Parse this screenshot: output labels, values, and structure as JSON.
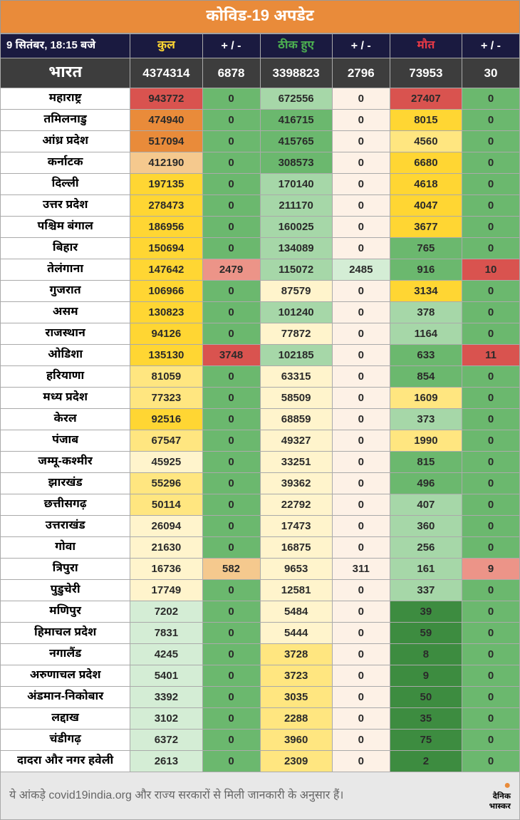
{
  "title": "कोविड-19 अपडेट",
  "date": "9 सितंबर, 18:15 बजे",
  "headers": {
    "total": "कुल",
    "total_delta": "+ / -",
    "recovered": "ठीक हुए",
    "recovered_delta": "+ / -",
    "deaths": "मौत",
    "deaths_delta": "+ / -"
  },
  "india": {
    "label": "भारत",
    "total": "4374314",
    "total_delta": "6878",
    "recovered": "3398823",
    "recovered_delta": "2796",
    "deaths": "73953",
    "deaths_delta": "30"
  },
  "footer": "ये आंकड़े covid19india.org और राज्य सरकारों से मिली जानकारी के अनुसार हैं।",
  "footer_logo": "दैनिक\nभास्कर",
  "colors": {
    "title_bg": "#e98b3a",
    "header_bg": "#1a1a40",
    "india_bg": "#3d3d3d",
    "scale_green_dark": "#3d8c40",
    "scale_green": "#6bb86e",
    "scale_green_light": "#a6d7a8",
    "scale_green_vlight": "#d4edd5",
    "scale_yellow_vlight": "#fff4cc",
    "scale_yellow_light": "#ffe680",
    "scale_yellow": "#ffd633",
    "scale_orange_light": "#f5c98e",
    "scale_orange": "#e98b3a",
    "scale_red_light": "#ec9488",
    "scale_red": "#d9534f",
    "scale_cream": "#fdf1e6",
    "white": "#ffffff",
    "footer_bg": "#e8e8e8"
  },
  "states": [
    {
      "name": "महाराष्ट्र",
      "t": "943772",
      "tc": "scale_red",
      "td": "0",
      "tdc": "scale_green",
      "r": "672556",
      "rc": "scale_green_light",
      "rd": "0",
      "rdc": "scale_cream",
      "d": "27407",
      "dc": "scale_red",
      "dd": "0",
      "ddc": "scale_green"
    },
    {
      "name": "तमिलनाडु",
      "t": "474940",
      "tc": "scale_orange",
      "td": "0",
      "tdc": "scale_green",
      "r": "416715",
      "rc": "scale_green",
      "rd": "0",
      "rdc": "scale_cream",
      "d": "8015",
      "dc": "scale_yellow",
      "dd": "0",
      "ddc": "scale_green"
    },
    {
      "name": "आंध्र प्रदेश",
      "t": "517094",
      "tc": "scale_orange",
      "td": "0",
      "tdc": "scale_green",
      "r": "415765",
      "rc": "scale_green",
      "rd": "0",
      "rdc": "scale_cream",
      "d": "4560",
      "dc": "scale_yellow_light",
      "dd": "0",
      "ddc": "scale_green"
    },
    {
      "name": "कर्नाटक",
      "t": "412190",
      "tc": "scale_orange_light",
      "td": "0",
      "tdc": "scale_green",
      "r": "308573",
      "rc": "scale_green",
      "rd": "0",
      "rdc": "scale_cream",
      "d": "6680",
      "dc": "scale_yellow",
      "dd": "0",
      "ddc": "scale_green"
    },
    {
      "name": "दिल्ली",
      "t": "197135",
      "tc": "scale_yellow",
      "td": "0",
      "tdc": "scale_green",
      "r": "170140",
      "rc": "scale_green_light",
      "rd": "0",
      "rdc": "scale_cream",
      "d": "4618",
      "dc": "scale_yellow",
      "dd": "0",
      "ddc": "scale_green"
    },
    {
      "name": "उत्तर प्रदेश",
      "t": "278473",
      "tc": "scale_yellow",
      "td": "0",
      "tdc": "scale_green",
      "r": "211170",
      "rc": "scale_green_light",
      "rd": "0",
      "rdc": "scale_cream",
      "d": "4047",
      "dc": "scale_yellow",
      "dd": "0",
      "ddc": "scale_green"
    },
    {
      "name": "पश्चिम बंगाल",
      "t": "186956",
      "tc": "scale_yellow",
      "td": "0",
      "tdc": "scale_green",
      "r": "160025",
      "rc": "scale_green_light",
      "rd": "0",
      "rdc": "scale_cream",
      "d": "3677",
      "dc": "scale_yellow",
      "dd": "0",
      "ddc": "scale_green"
    },
    {
      "name": "बिहार",
      "t": "150694",
      "tc": "scale_yellow",
      "td": "0",
      "tdc": "scale_green",
      "r": "134089",
      "rc": "scale_green_light",
      "rd": "0",
      "rdc": "scale_cream",
      "d": "765",
      "dc": "scale_green",
      "dd": "0",
      "ddc": "scale_green"
    },
    {
      "name": "तेलंगाना",
      "t": "147642",
      "tc": "scale_yellow",
      "td": "2479",
      "tdc": "scale_red_light",
      "r": "115072",
      "rc": "scale_green_light",
      "rd": "2485",
      "rdc": "scale_green_vlight",
      "d": "916",
      "dc": "scale_green",
      "dd": "10",
      "ddc": "scale_red"
    },
    {
      "name": "गुजरात",
      "t": "106966",
      "tc": "scale_yellow",
      "td": "0",
      "tdc": "scale_green",
      "r": "87579",
      "rc": "scale_yellow_vlight",
      "rd": "0",
      "rdc": "scale_cream",
      "d": "3134",
      "dc": "scale_yellow",
      "dd": "0",
      "ddc": "scale_green"
    },
    {
      "name": "असम",
      "t": "130823",
      "tc": "scale_yellow",
      "td": "0",
      "tdc": "scale_green",
      "r": "101240",
      "rc": "scale_green_light",
      "rd": "0",
      "rdc": "scale_cream",
      "d": "378",
      "dc": "scale_green_light",
      "dd": "0",
      "ddc": "scale_green"
    },
    {
      "name": "राजस्थान",
      "t": "94126",
      "tc": "scale_yellow",
      "td": "0",
      "tdc": "scale_green",
      "r": "77872",
      "rc": "scale_yellow_vlight",
      "rd": "0",
      "rdc": "scale_cream",
      "d": "1164",
      "dc": "scale_green_light",
      "dd": "0",
      "ddc": "scale_green"
    },
    {
      "name": "ओडिशा",
      "t": "135130",
      "tc": "scale_yellow",
      "td": "3748",
      "tdc": "scale_red",
      "r": "102185",
      "rc": "scale_green_light",
      "rd": "0",
      "rdc": "scale_cream",
      "d": "633",
      "dc": "scale_green",
      "dd": "11",
      "ddc": "scale_red"
    },
    {
      "name": "हरियाणा",
      "t": "81059",
      "tc": "scale_yellow_light",
      "td": "0",
      "tdc": "scale_green",
      "r": "63315",
      "rc": "scale_yellow_vlight",
      "rd": "0",
      "rdc": "scale_cream",
      "d": "854",
      "dc": "scale_green",
      "dd": "0",
      "ddc": "scale_green"
    },
    {
      "name": "मध्य प्रदेश",
      "t": "77323",
      "tc": "scale_yellow_light",
      "td": "0",
      "tdc": "scale_green",
      "r": "58509",
      "rc": "scale_yellow_vlight",
      "rd": "0",
      "rdc": "scale_cream",
      "d": "1609",
      "dc": "scale_yellow_light",
      "dd": "0",
      "ddc": "scale_green"
    },
    {
      "name": "केरल",
      "t": "92516",
      "tc": "scale_yellow",
      "td": "0",
      "tdc": "scale_green",
      "r": "68859",
      "rc": "scale_yellow_vlight",
      "rd": "0",
      "rdc": "scale_cream",
      "d": "373",
      "dc": "scale_green_light",
      "dd": "0",
      "ddc": "scale_green"
    },
    {
      "name": "पंजाब",
      "t": "67547",
      "tc": "scale_yellow_light",
      "td": "0",
      "tdc": "scale_green",
      "r": "49327",
      "rc": "scale_yellow_vlight",
      "rd": "0",
      "rdc": "scale_cream",
      "d": "1990",
      "dc": "scale_yellow_light",
      "dd": "0",
      "ddc": "scale_green"
    },
    {
      "name": "जम्मू-कश्मीर",
      "t": "45925",
      "tc": "scale_yellow_vlight",
      "td": "0",
      "tdc": "scale_green",
      "r": "33251",
      "rc": "scale_yellow_vlight",
      "rd": "0",
      "rdc": "scale_cream",
      "d": "815",
      "dc": "scale_green",
      "dd": "0",
      "ddc": "scale_green"
    },
    {
      "name": "झारखंड",
      "t": "55296",
      "tc": "scale_yellow_light",
      "td": "0",
      "tdc": "scale_green",
      "r": "39362",
      "rc": "scale_yellow_vlight",
      "rd": "0",
      "rdc": "scale_cream",
      "d": "496",
      "dc": "scale_green",
      "dd": "0",
      "ddc": "scale_green"
    },
    {
      "name": "छत्तीसगढ़",
      "t": "50114",
      "tc": "scale_yellow_light",
      "td": "0",
      "tdc": "scale_green",
      "r": "22792",
      "rc": "scale_yellow_vlight",
      "rd": "0",
      "rdc": "scale_cream",
      "d": "407",
      "dc": "scale_green_light",
      "dd": "0",
      "ddc": "scale_green"
    },
    {
      "name": "उत्तराखंड",
      "t": "26094",
      "tc": "scale_yellow_vlight",
      "td": "0",
      "tdc": "scale_green",
      "r": "17473",
      "rc": "scale_yellow_vlight",
      "rd": "0",
      "rdc": "scale_cream",
      "d": "360",
      "dc": "scale_green_light",
      "dd": "0",
      "ddc": "scale_green"
    },
    {
      "name": "गोवा",
      "t": "21630",
      "tc": "scale_yellow_vlight",
      "td": "0",
      "tdc": "scale_green",
      "r": "16875",
      "rc": "scale_yellow_vlight",
      "rd": "0",
      "rdc": "scale_cream",
      "d": "256",
      "dc": "scale_green_light",
      "dd": "0",
      "ddc": "scale_green"
    },
    {
      "name": "त्रिपुरा",
      "t": "16736",
      "tc": "scale_yellow_vlight",
      "td": "582",
      "tdc": "scale_orange_light",
      "r": "9653",
      "rc": "scale_yellow_vlight",
      "rd": "311",
      "rdc": "scale_cream",
      "d": "161",
      "dc": "scale_green_light",
      "dd": "9",
      "ddc": "scale_red_light"
    },
    {
      "name": "पुडुचेरी",
      "t": "17749",
      "tc": "scale_yellow_vlight",
      "td": "0",
      "tdc": "scale_green",
      "r": "12581",
      "rc": "scale_yellow_vlight",
      "rd": "0",
      "rdc": "scale_cream",
      "d": "337",
      "dc": "scale_green_light",
      "dd": "0",
      "ddc": "scale_green"
    },
    {
      "name": "मणिपुर",
      "t": "7202",
      "tc": "scale_green_vlight",
      "td": "0",
      "tdc": "scale_green",
      "r": "5484",
      "rc": "scale_yellow_vlight",
      "rd": "0",
      "rdc": "scale_cream",
      "d": "39",
      "dc": "scale_green_dark",
      "dd": "0",
      "ddc": "scale_green"
    },
    {
      "name": "हिमाचल प्रदेश",
      "t": "7831",
      "tc": "scale_green_vlight",
      "td": "0",
      "tdc": "scale_green",
      "r": "5444",
      "rc": "scale_yellow_vlight",
      "rd": "0",
      "rdc": "scale_cream",
      "d": "59",
      "dc": "scale_green_dark",
      "dd": "0",
      "ddc": "scale_green"
    },
    {
      "name": "नगालैंड",
      "t": "4245",
      "tc": "scale_green_vlight",
      "td": "0",
      "tdc": "scale_green",
      "r": "3728",
      "rc": "scale_yellow_light",
      "rd": "0",
      "rdc": "scale_cream",
      "d": "8",
      "dc": "scale_green_dark",
      "dd": "0",
      "ddc": "scale_green"
    },
    {
      "name": "अरुणाचल प्रदेश",
      "t": "5401",
      "tc": "scale_green_vlight",
      "td": "0",
      "tdc": "scale_green",
      "r": "3723",
      "rc": "scale_yellow_light",
      "rd": "0",
      "rdc": "scale_cream",
      "d": "9",
      "dc": "scale_green_dark",
      "dd": "0",
      "ddc": "scale_green"
    },
    {
      "name": "अंडमान-निकोबार",
      "t": "3392",
      "tc": "scale_green_vlight",
      "td": "0",
      "tdc": "scale_green",
      "r": "3035",
      "rc": "scale_yellow_light",
      "rd": "0",
      "rdc": "scale_cream",
      "d": "50",
      "dc": "scale_green_dark",
      "dd": "0",
      "ddc": "scale_green"
    },
    {
      "name": "लद्दाख",
      "t": "3102",
      "tc": "scale_green_vlight",
      "td": "0",
      "tdc": "scale_green",
      "r": "2288",
      "rc": "scale_yellow_light",
      "rd": "0",
      "rdc": "scale_cream",
      "d": "35",
      "dc": "scale_green_dark",
      "dd": "0",
      "ddc": "scale_green"
    },
    {
      "name": "चंडीगढ़",
      "t": "6372",
      "tc": "scale_green_vlight",
      "td": "0",
      "tdc": "scale_green",
      "r": "3960",
      "rc": "scale_yellow_light",
      "rd": "0",
      "rdc": "scale_cream",
      "d": "75",
      "dc": "scale_green_dark",
      "dd": "0",
      "ddc": "scale_green"
    },
    {
      "name": "दादरा और नगर हवेली",
      "t": "2613",
      "tc": "scale_green_vlight",
      "td": "0",
      "tdc": "scale_green",
      "r": "2309",
      "rc": "scale_yellow_light",
      "rd": "0",
      "rdc": "scale_cream",
      "d": "2",
      "dc": "scale_green_dark",
      "dd": "0",
      "ddc": "scale_green"
    }
  ]
}
